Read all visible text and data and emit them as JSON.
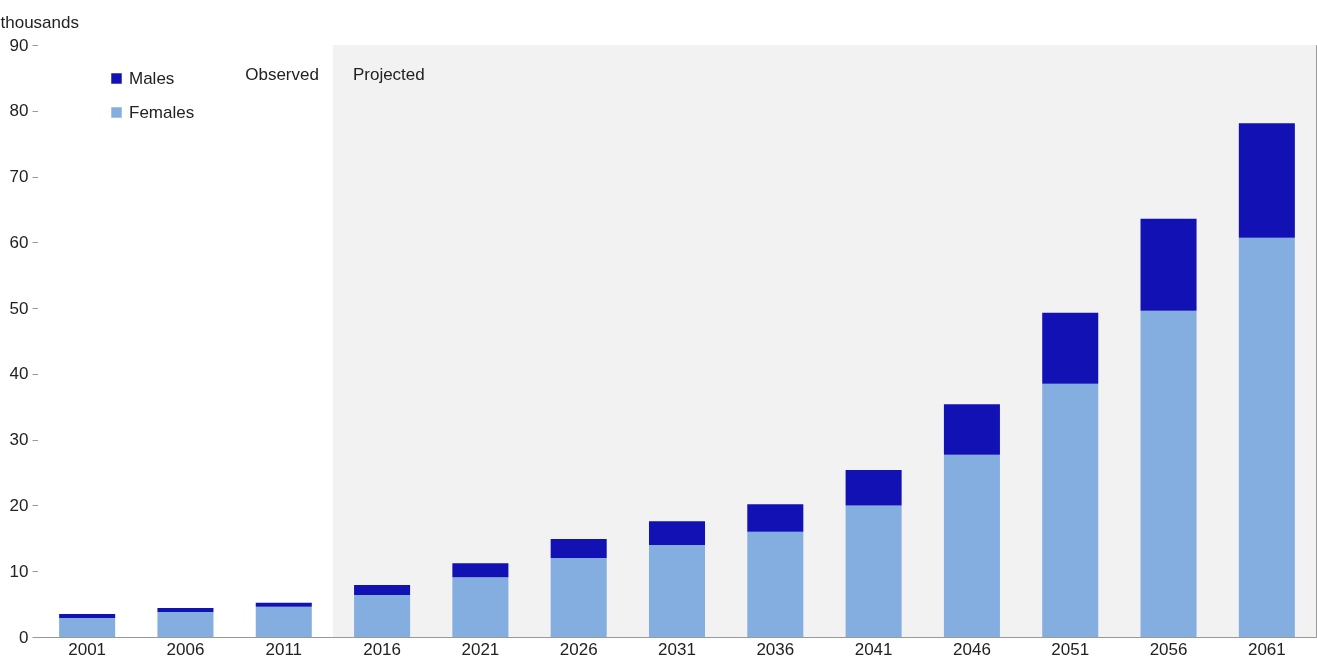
{
  "chart_data": {
    "type": "bar",
    "stacked": true,
    "ylabel": "thousands",
    "categories": [
      "2001",
      "2006",
      "2011",
      "2016",
      "2021",
      "2026",
      "2031",
      "2036",
      "2041",
      "2046",
      "2051",
      "2056",
      "2061"
    ],
    "series": [
      {
        "name": "Females",
        "color": "#84aee0",
        "values": [
          2.9,
          3.8,
          4.6,
          6.4,
          9.1,
          12.0,
          14.0,
          16.0,
          20.0,
          27.7,
          38.5,
          49.6,
          60.7
        ]
      },
      {
        "name": "Males",
        "color": "#1212b4",
        "values": [
          0.6,
          0.6,
          0.6,
          1.5,
          2.1,
          2.9,
          3.6,
          4.2,
          5.4,
          7.7,
          10.8,
          14.0,
          17.4
        ]
      }
    ],
    "ylim": [
      0,
      90
    ],
    "yticks": [
      0,
      10,
      20,
      30,
      40,
      50,
      60,
      70,
      80,
      90
    ],
    "bands": [
      {
        "axis": "x",
        "from": "2001",
        "to": "2011",
        "label": "Observed",
        "color": "#ffffff"
      },
      {
        "axis": "x",
        "from": "2016",
        "to": "2061",
        "label": "Projected",
        "color": "#f2f2f2"
      }
    ],
    "grid": false,
    "legend": "top left"
  }
}
